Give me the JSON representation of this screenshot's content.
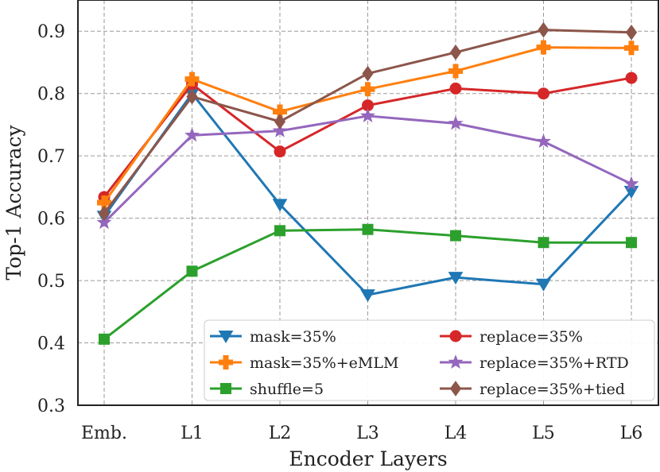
{
  "chart_data": {
    "type": "line",
    "title": "",
    "xlabel": "Encoder Layers",
    "ylabel": "Top-1 Accuracy",
    "categories": [
      "Emb.",
      "L1",
      "L2",
      "L3",
      "L4",
      "L5",
      "L6"
    ],
    "ylim": [
      0.3,
      0.95
    ],
    "yticks": [
      "0.3",
      "0.4",
      "0.5",
      "0.6",
      "0.7",
      "0.8",
      "0.9"
    ],
    "grid": true,
    "legend_position": "lower-right",
    "series": [
      {
        "name": "mask=35%",
        "color": "#1f77b4",
        "marker": "triangle-down",
        "values": [
          0.603,
          0.8,
          0.622,
          0.477,
          0.505,
          0.494,
          0.643
        ]
      },
      {
        "name": "replace=35%",
        "color": "#d62728",
        "marker": "circle",
        "values": [
          0.634,
          0.815,
          0.707,
          0.781,
          0.808,
          0.8,
          0.825
        ]
      },
      {
        "name": "mask=35%+eMLM",
        "color": "#ff7f0e",
        "marker": "plus",
        "values": [
          0.625,
          0.823,
          0.771,
          0.807,
          0.836,
          0.874,
          0.873
        ]
      },
      {
        "name": "replace=35%+RTD",
        "color": "#9467bd",
        "marker": "star",
        "values": [
          0.593,
          0.733,
          0.74,
          0.764,
          0.752,
          0.723,
          0.655
        ]
      },
      {
        "name": "shuffle=5",
        "color": "#2ca02c",
        "marker": "square",
        "values": [
          0.406,
          0.515,
          0.58,
          0.582,
          0.572,
          0.561,
          0.561
        ]
      },
      {
        "name": "replace=35%+tied",
        "color": "#8c564b",
        "marker": "diamond",
        "values": [
          0.608,
          0.795,
          0.755,
          0.832,
          0.866,
          0.902,
          0.898
        ]
      }
    ]
  }
}
